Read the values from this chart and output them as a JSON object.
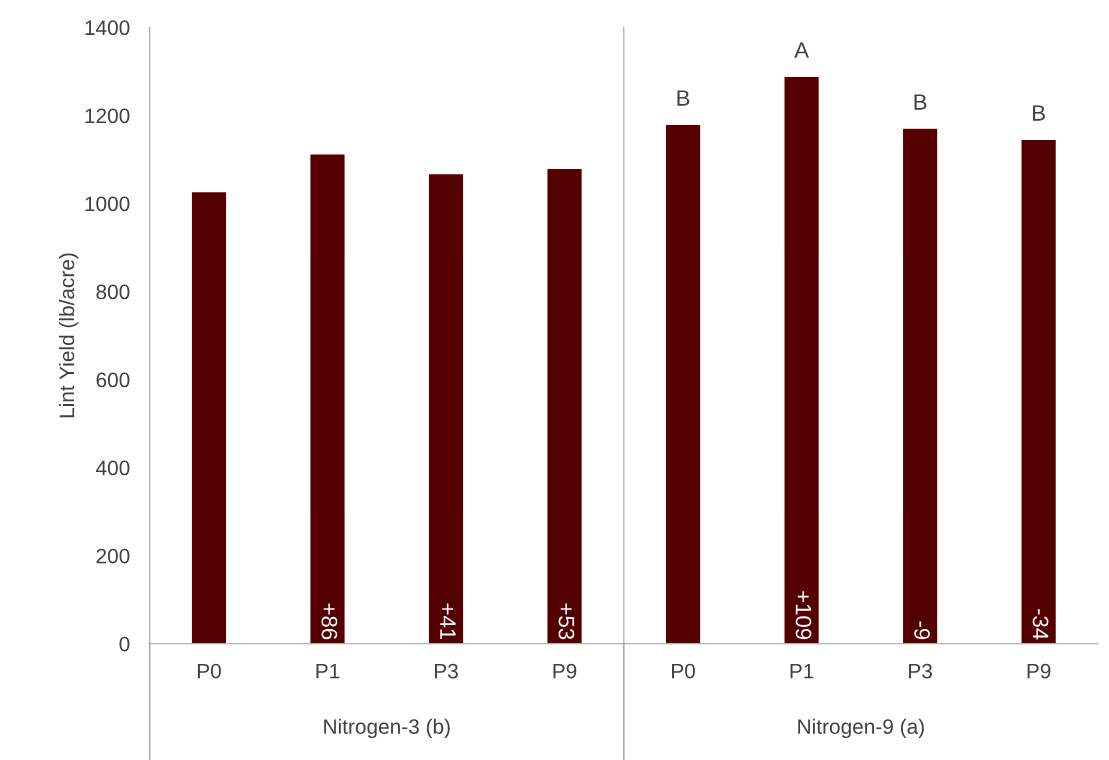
{
  "chart_data": [
    {
      "type": "bar",
      "ylabel": "Lint Yield (lb/acre)",
      "xlabel": "Nitrogen-3 (b)",
      "categories": [
        "P0",
        "P1",
        "P3",
        "P9"
      ],
      "values": [
        1027,
        1113,
        1068,
        1080
      ],
      "color": "#550000",
      "ylim": [
        0,
        1400
      ],
      "yticks": [
        0,
        200,
        400,
        600,
        800,
        1000,
        1200,
        1400
      ],
      "annotations": [
        {
          "text": "+86",
          "x": "P1",
          "y": 0
        },
        {
          "text": "+41",
          "x": "P3",
          "y": 0
        },
        {
          "text": "+53",
          "x": "P9",
          "y": 0
        }
      ]
    },
    {
      "type": "bar",
      "xlabel": "Nitrogen-9 (a)",
      "categories": [
        "P0",
        "P1",
        "P3",
        "P9"
      ],
      "values": [
        1180,
        1289,
        1171,
        1146
      ],
      "color": "#550000",
      "ylim": [
        0,
        1400
      ],
      "yticks": [
        0,
        200,
        400,
        600,
        800,
        1000,
        1200,
        1400
      ],
      "tick_labels": "x",
      "annotations": [
        {
          "text": "+109",
          "x": "P1",
          "y": 0
        },
        {
          "text": "-9",
          "x": "P3",
          "y": 0
        },
        {
          "text": "-34",
          "x": "P9",
          "y": 0
        },
        {
          "text": "B",
          "x": "P0",
          "y": 1180
        },
        {
          "text": "A",
          "x": "P1",
          "y": 1289
        },
        {
          "text": "B",
          "x": "P3",
          "y": 1171
        },
        {
          "text": "B",
          "x": "P9",
          "y": 1146
        }
      ]
    }
  ]
}
